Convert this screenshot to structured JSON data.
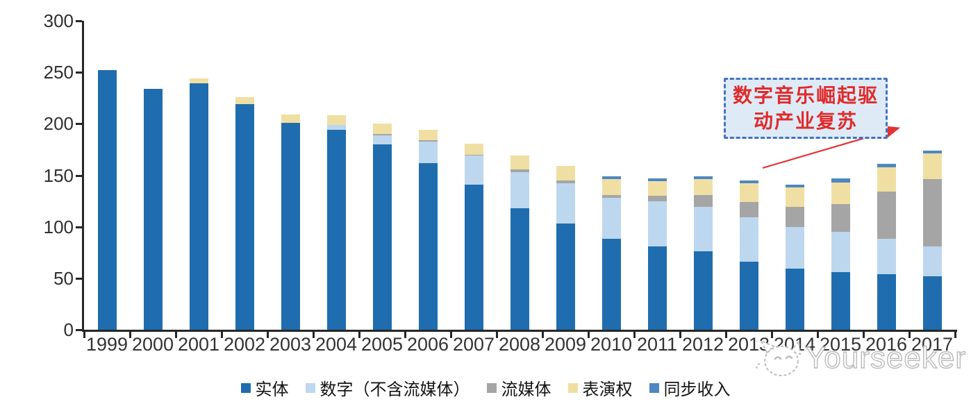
{
  "chart_data": {
    "type": "bar",
    "stacked": true,
    "categories": [
      "1999",
      "2000",
      "2001",
      "2002",
      "2003",
      "2004",
      "2005",
      "2006",
      "2007",
      "2008",
      "2009",
      "2010",
      "2011",
      "2012",
      "2013",
      "2014",
      "2015",
      "2016",
      "2017"
    ],
    "series": [
      {
        "name": "实体",
        "color": "#1f6dae",
        "values": [
          252,
          234,
          239,
          219,
          201,
          194,
          180,
          162,
          141,
          118,
          103,
          88,
          81,
          76,
          66,
          59,
          56,
          54,
          52
        ]
      },
      {
        "name": "数字（不含流媒体）",
        "color": "#bdd7ee",
        "values": [
          0,
          0,
          0,
          0,
          0,
          5,
          9,
          21,
          28,
          35,
          39,
          40,
          44,
          43,
          43,
          41,
          39,
          34,
          29
        ]
      },
      {
        "name": "流媒体",
        "color": "#a5a5a5",
        "values": [
          0,
          0,
          0,
          0,
          0,
          0,
          1,
          1,
          1,
          3,
          3,
          3,
          5,
          12,
          15,
          19,
          27,
          46,
          65
        ]
      },
      {
        "name": "表演权",
        "color": "#f0dfa2",
        "values": [
          0,
          0,
          5,
          7,
          8,
          9,
          10,
          10,
          11,
          13,
          14,
          15,
          14,
          15,
          18,
          19,
          21,
          24,
          25
        ]
      },
      {
        "name": "同步收入",
        "color": "#4e87c2",
        "values": [
          0,
          0,
          0,
          0,
          0,
          0,
          0,
          0,
          0,
          0,
          0,
          3,
          3,
          3,
          3,
          3,
          4,
          3,
          3
        ]
      }
    ],
    "ylim": [
      0,
      300
    ],
    "y_ticks": [
      0,
      50,
      100,
      150,
      200,
      250,
      300
    ],
    "grid": false,
    "legend_position": "bottom",
    "axis_color": "#262626"
  },
  "annotation": {
    "line1": "数字音乐崛起驱",
    "line2": "动产业复苏",
    "text_color": "#e02b2b",
    "box_fill": "#deebf7",
    "box_border": "#4472c4",
    "arrow_color": "#e23333"
  },
  "watermark": {
    "text": "Yourseeker",
    "icon": "cat-face-icon",
    "color": "#b9b9b9"
  }
}
